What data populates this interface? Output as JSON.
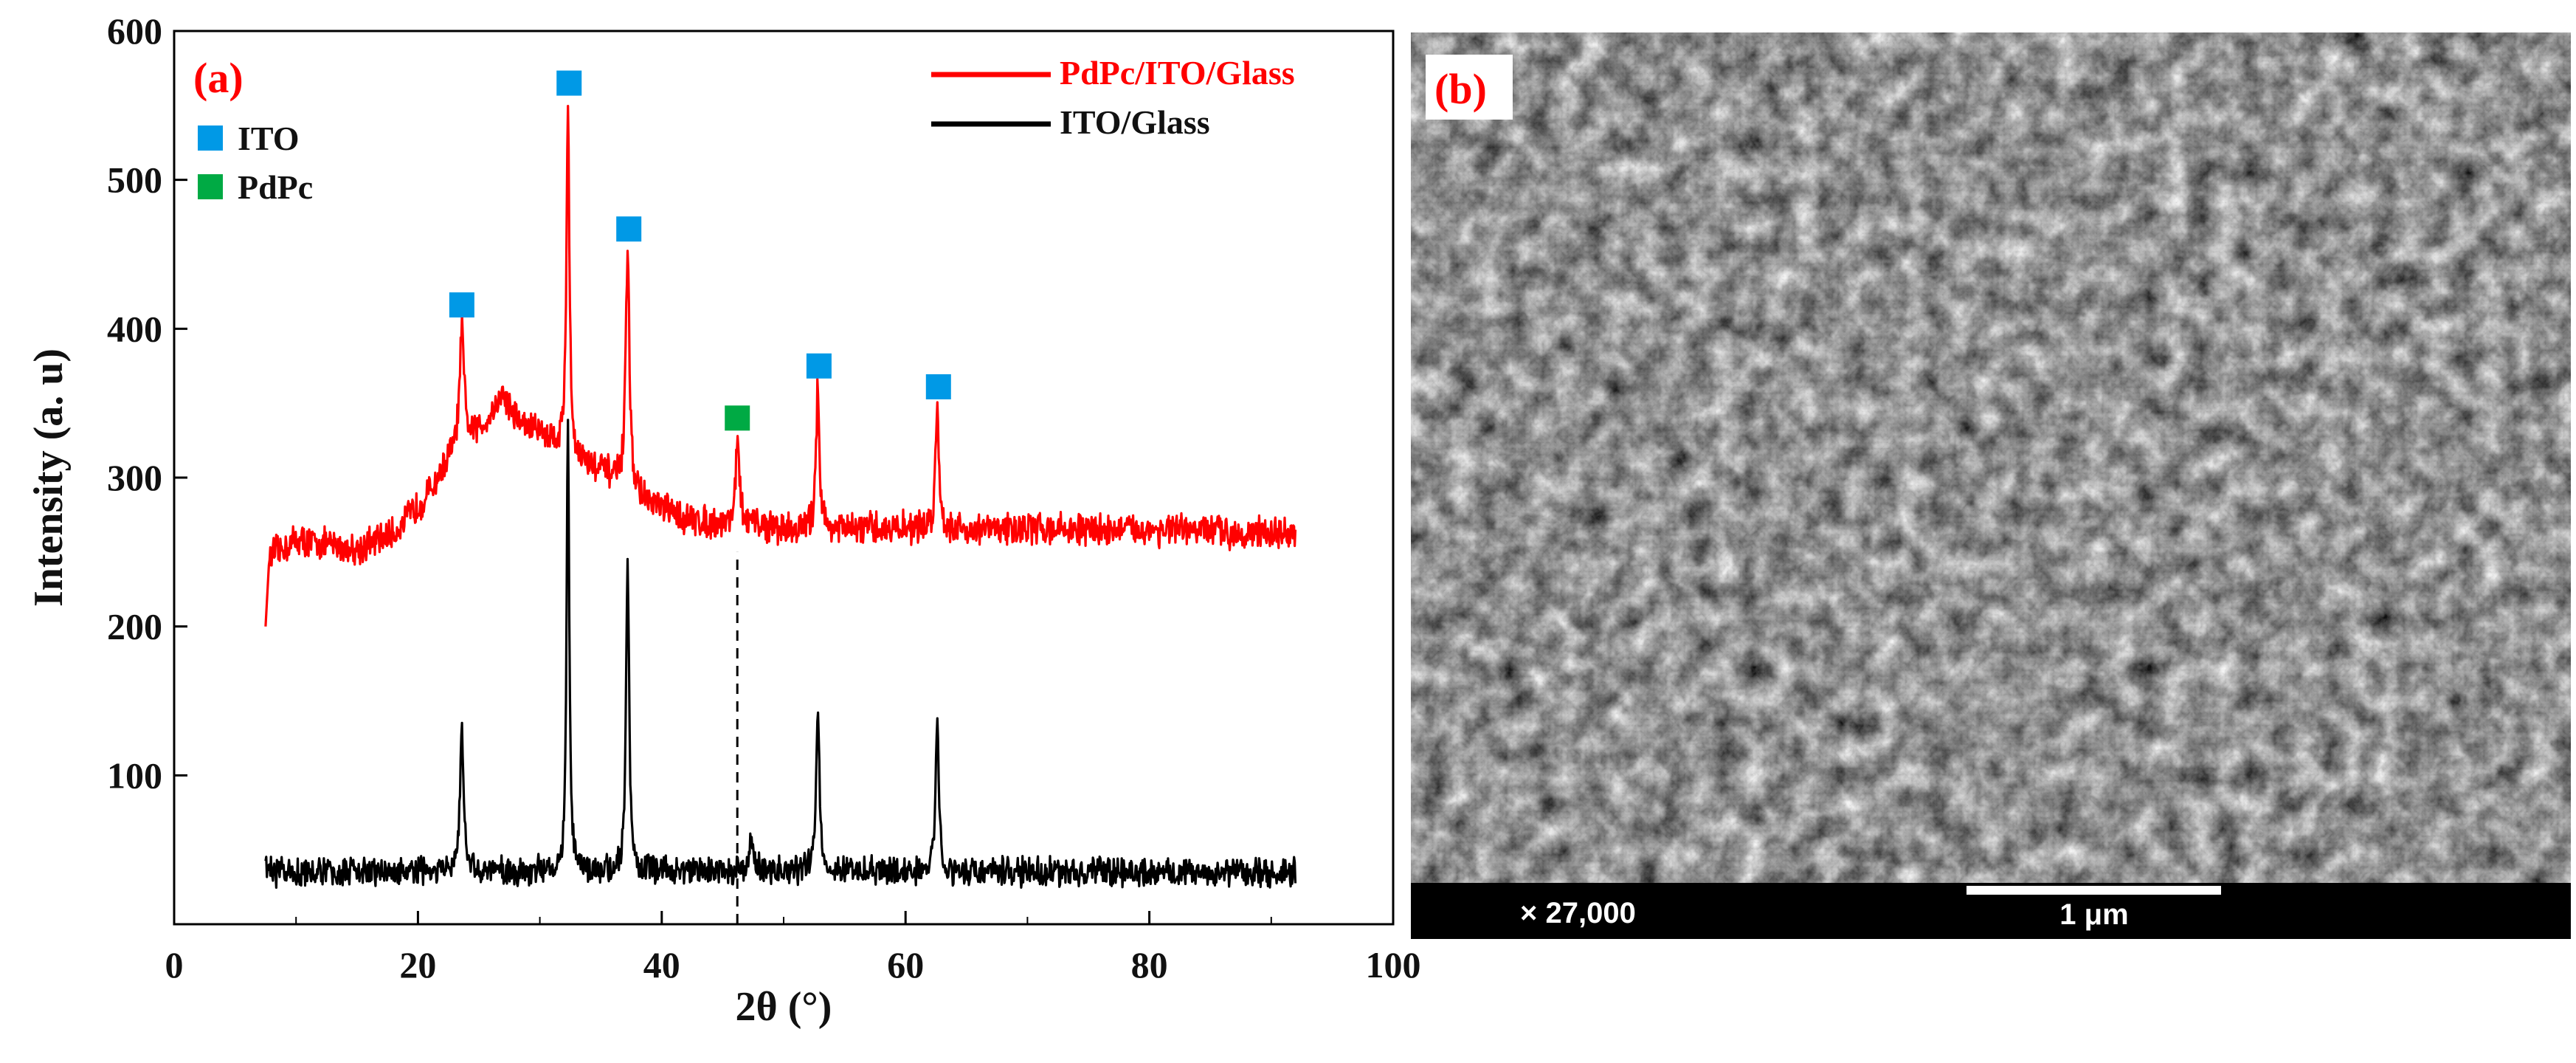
{
  "chart_data": {
    "type": "line",
    "panel_label": "(a)",
    "xlabel": "2θ (°)",
    "ylabel": "Intensity (a. u)",
    "xlim": [
      0,
      100
    ],
    "ylim": [
      0,
      600
    ],
    "xticks": [
      0,
      20,
      40,
      60,
      80,
      100
    ],
    "xtick_labels": [
      "0",
      "20",
      "40",
      "60",
      "80",
      "100"
    ],
    "yticks": [
      100,
      200,
      300,
      400,
      500,
      600
    ],
    "ytick_labels": [
      "100",
      "200",
      "300",
      "400",
      "500",
      "600"
    ],
    "legend": {
      "placement": "top-right",
      "entries": [
        {
          "label": "PdPc/ITO/Glass",
          "color": "#ff0000"
        },
        {
          "label": "ITO/Glass",
          "color": "#000000"
        }
      ]
    },
    "marker_legend": {
      "placement": "top-left",
      "entries": [
        {
          "label": "ITO",
          "color": "#0099e6"
        },
        {
          "label": "PdPc",
          "color": "#00aa44"
        }
      ]
    },
    "series": [
      {
        "name": "PdPc/ITO/Glass",
        "color": "#ff0000",
        "baseline": [
          [
            7.5,
            245
          ],
          [
            10,
            258
          ],
          [
            15,
            252
          ],
          [
            18,
            262
          ],
          [
            21,
            290
          ],
          [
            23,
            318
          ],
          [
            26,
            335
          ],
          [
            30,
            330
          ],
          [
            33,
            312
          ],
          [
            36,
            300
          ],
          [
            39,
            282
          ],
          [
            42,
            272
          ],
          [
            45,
            268
          ],
          [
            48,
            268
          ],
          [
            50,
            265
          ],
          [
            55,
            265
          ],
          [
            60,
            266
          ],
          [
            65,
            265
          ],
          [
            70,
            266
          ],
          [
            75,
            265
          ],
          [
            80,
            265
          ],
          [
            85,
            264
          ],
          [
            92,
            262
          ]
        ],
        "noise": 9,
        "peaks": [
          {
            "x": 23.6,
            "y": 400,
            "w": 0.35
          },
          {
            "x": 27.0,
            "y": 355,
            "w": 1.4
          },
          {
            "x": 32.3,
            "y": 550,
            "w": 0.25
          },
          {
            "x": 37.2,
            "y": 455,
            "w": 0.3
          },
          {
            "x": 46.2,
            "y": 322,
            "w": 0.35
          },
          {
            "x": 52.8,
            "y": 360,
            "w": 0.3
          },
          {
            "x": 62.6,
            "y": 346,
            "w": 0.3
          }
        ]
      },
      {
        "name": "ITO/Glass",
        "color": "#000000",
        "baseline": [
          [
            7.5,
            35
          ],
          [
            20,
            35
          ],
          [
            40,
            36
          ],
          [
            60,
            35
          ],
          [
            92,
            35
          ]
        ],
        "noise": 8,
        "peaks": [
          {
            "x": 23.6,
            "y": 128,
            "w": 0.3
          },
          {
            "x": 32.3,
            "y": 340,
            "w": 0.22
          },
          {
            "x": 37.2,
            "y": 245,
            "w": 0.25
          },
          {
            "x": 47.3,
            "y": 60,
            "w": 0.3
          },
          {
            "x": 52.8,
            "y": 148,
            "w": 0.28
          },
          {
            "x": 62.6,
            "y": 135,
            "w": 0.28
          }
        ]
      }
    ],
    "markers": [
      {
        "x": 23.6,
        "y": 416,
        "phase": "ITO",
        "color": "#0099e6"
      },
      {
        "x": 32.4,
        "y": 565,
        "phase": "ITO",
        "color": "#0099e6"
      },
      {
        "x": 37.3,
        "y": 467,
        "phase": "ITO",
        "color": "#0099e6"
      },
      {
        "x": 46.2,
        "y": 340,
        "phase": "PdPc",
        "color": "#00aa44"
      },
      {
        "x": 52.9,
        "y": 375,
        "phase": "ITO",
        "color": "#0099e6"
      },
      {
        "x": 62.7,
        "y": 361,
        "phase": "ITO",
        "color": "#0099e6"
      }
    ],
    "dashed_line": {
      "x": 46.2,
      "y_from": 0,
      "y_to": 250
    }
  },
  "sem": {
    "panel_label": "(b)",
    "magnification": "× 27,000",
    "scale_bar_label": "1 μm"
  }
}
